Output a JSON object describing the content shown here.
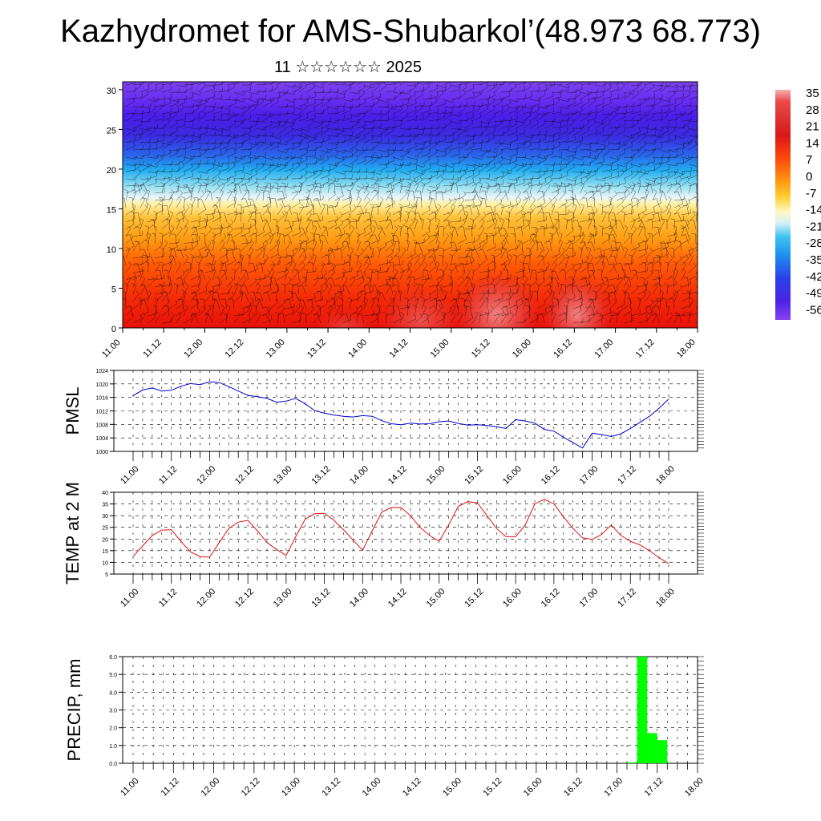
{
  "title": "Kazhydromet for AMS-Shubarkol’(48.973 68.773)",
  "subtitle": "11 ☆☆☆☆☆☆ 2025",
  "x_ticks": [
    "11.00",
    "11.12",
    "12.00",
    "12.12",
    "13.00",
    "13.12",
    "14.00",
    "14.12",
    "15.00",
    "15.12",
    "16.00",
    "16.12",
    "17.00",
    "17.12",
    "18.00"
  ],
  "colorbar": {
    "labels": [
      "35",
      "28",
      "21",
      "14",
      "7",
      "0",
      "-7",
      "-14",
      "-21",
      "-28",
      "-35",
      "-42",
      "-49",
      "-56"
    ]
  },
  "chart_data": [
    {
      "type": "heatmap",
      "title": "",
      "xlabel": "",
      "ylabel": "",
      "x_categories": [
        "11.00",
        "11.12",
        "12.00",
        "12.12",
        "13.00",
        "13.12",
        "14.00",
        "14.12",
        "15.00",
        "15.12",
        "16.00",
        "16.12",
        "17.00",
        "17.12",
        "18.00"
      ],
      "ylim": [
        0,
        31
      ],
      "y_ticks": [
        0,
        5,
        10,
        15,
        20,
        25,
        30
      ],
      "color_scale": [
        35,
        28,
        21,
        14,
        7,
        0,
        -7,
        -14,
        -21,
        -28,
        -35,
        -42,
        -49,
        -56
      ],
      "overlay": "wind barbs"
    },
    {
      "type": "line",
      "ylabel": "PMSL",
      "ylim": [
        1000,
        1024
      ],
      "y_ticks": [
        1000,
        1004,
        1008,
        1012,
        1016,
        1020,
        1024
      ],
      "color": "#0000cc",
      "x": [
        "11.00",
        "11.03",
        "11.06",
        "11.09",
        "11.12",
        "11.15",
        "11.18",
        "11.21",
        "12.00",
        "12.03",
        "12.06",
        "12.09",
        "12.12",
        "12.15",
        "12.18",
        "12.21",
        "13.00",
        "13.03",
        "13.06",
        "13.09",
        "13.12",
        "13.15",
        "13.18",
        "13.21",
        "14.00",
        "14.03",
        "14.06",
        "14.09",
        "14.12",
        "14.15",
        "14.18",
        "14.21",
        "15.00",
        "15.03",
        "15.06",
        "15.09",
        "15.12",
        "15.15",
        "15.18",
        "15.21",
        "16.00",
        "16.03",
        "16.06",
        "16.09",
        "16.12",
        "16.15",
        "16.18",
        "16.21",
        "17.00",
        "17.03",
        "17.06",
        "17.09",
        "17.12",
        "17.15",
        "17.18",
        "17.21",
        "18.00"
      ],
      "values": [
        1016.5,
        1018.2,
        1018.8,
        1017.9,
        1018.1,
        1019.3,
        1020.1,
        1019.8,
        1020.6,
        1020.4,
        1019.2,
        1017.9,
        1016.6,
        1016.2,
        1015.7,
        1014.6,
        1014.9,
        1015.7,
        1014.1,
        1012.1,
        1011.3,
        1010.8,
        1010.4,
        1010.2,
        1010.6,
        1010.4,
        1009.1,
        1008.2,
        1007.9,
        1008.4,
        1008.1,
        1008.2,
        1008.8,
        1009.0,
        1008.3,
        1007.8,
        1007.9,
        1007.7,
        1007.3,
        1006.8,
        1009.4,
        1009.0,
        1008.4,
        1006.5,
        1006.0,
        1004.2,
        1002.6,
        1001.0,
        1005.4,
        1005.0,
        1004.4,
        1005.2,
        1006.8,
        1008.6,
        1010.4,
        1012.8,
        1015.5
      ]
    },
    {
      "type": "line",
      "ylabel": "TEMP at 2 M",
      "ylim": [
        5,
        40
      ],
      "y_ticks": [
        5,
        10,
        15,
        20,
        25,
        30,
        35,
        40
      ],
      "color": "#e01010",
      "x": [
        "11.00",
        "11.03",
        "11.06",
        "11.09",
        "11.12",
        "11.15",
        "11.18",
        "11.21",
        "12.00",
        "12.03",
        "12.06",
        "12.09",
        "12.12",
        "12.15",
        "12.18",
        "12.21",
        "13.00",
        "13.03",
        "13.06",
        "13.09",
        "13.12",
        "13.15",
        "13.18",
        "13.21",
        "14.00",
        "14.03",
        "14.06",
        "14.09",
        "14.12",
        "14.15",
        "14.18",
        "14.21",
        "15.00",
        "15.03",
        "15.06",
        "15.09",
        "15.12",
        "15.15",
        "15.18",
        "15.21",
        "16.00",
        "16.03",
        "16.06",
        "16.09",
        "16.12",
        "16.15",
        "16.18",
        "16.21",
        "17.00",
        "17.03",
        "17.06",
        "17.09",
        "17.12",
        "17.15",
        "17.18",
        "17.21",
        "18.00"
      ],
      "values": [
        12.5,
        17.0,
        21.5,
        23.8,
        24.0,
        19.0,
        14.5,
        12.5,
        12.2,
        18.5,
        24.5,
        27.2,
        28.0,
        23.5,
        18.5,
        15.5,
        13.0,
        21.0,
        28.5,
        30.8,
        31.0,
        28.0,
        24.0,
        19.5,
        15.2,
        23.5,
        31.5,
        33.5,
        33.5,
        30.0,
        25.0,
        21.5,
        19.0,
        26.0,
        34.0,
        36.0,
        35.5,
        30.0,
        24.5,
        21.0,
        21.0,
        26.0,
        35.0,
        37.0,
        35.0,
        29.5,
        24.5,
        20.5,
        19.8,
        22.0,
        26.0,
        21.5,
        19.0,
        17.5,
        15.0,
        12.0,
        9.5
      ]
    },
    {
      "type": "bar",
      "ylabel": "PRECIP, mm",
      "ylim": [
        0,
        6
      ],
      "y_ticks": [
        0.0,
        1.0,
        2.0,
        3.0,
        4.0,
        5.0,
        6.0
      ],
      "color": "#00ff00",
      "categories": [
        "17.00",
        "17.03",
        "17.06",
        "17.09",
        "17.12",
        "17.15"
      ],
      "values": [
        0.0,
        0.05,
        6.0,
        1.7,
        1.3,
        0.0
      ]
    }
  ]
}
